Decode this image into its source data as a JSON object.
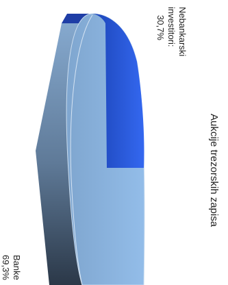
{
  "chart_data": {
    "type": "pie",
    "title": "Aukcije trezorskih zapisa",
    "slices": [
      {
        "label": "Nebankarski investitori:",
        "value": 30.7,
        "value_label": "30,7%",
        "color": "#2f5fe0"
      },
      {
        "label": "Banke",
        "value": 69.3,
        "value_label": "69,3%",
        "color": "#8ab4e2"
      }
    ],
    "orientation": "rotated 90° clockwise",
    "style": "3d"
  }
}
